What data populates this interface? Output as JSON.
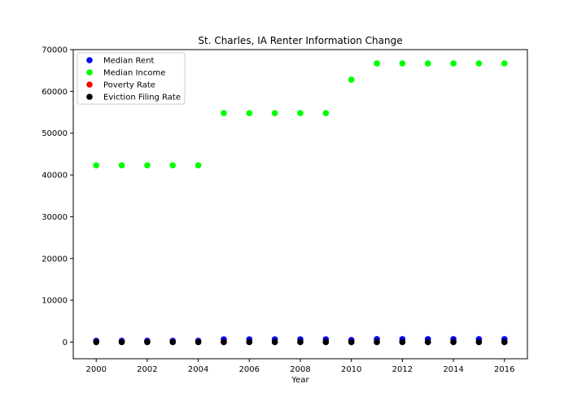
{
  "chart_data": {
    "type": "scatter",
    "title": "St. Charles, IA Renter Information Change",
    "xlabel": "Year",
    "ylabel": "",
    "xlim": [
      1999.1,
      2016.9
    ],
    "ylim": [
      -4000,
      70000
    ],
    "xticks": [
      2000,
      2002,
      2004,
      2006,
      2008,
      2010,
      2012,
      2014,
      2016
    ],
    "yticks": [
      0,
      10000,
      20000,
      30000,
      40000,
      50000,
      60000,
      70000
    ],
    "grid": false,
    "legend_position": "top-left",
    "x": [
      2000,
      2001,
      2002,
      2003,
      2004,
      2005,
      2006,
      2007,
      2008,
      2009,
      2010,
      2011,
      2012,
      2013,
      2014,
      2015,
      2016
    ],
    "series": [
      {
        "name": "Median Rent",
        "color": "#0000ff",
        "values": [
          300,
          300,
          300,
          300,
          300,
          650,
          650,
          650,
          650,
          650,
          500,
          700,
          700,
          700,
          700,
          700,
          700
        ]
      },
      {
        "name": "Median Income",
        "color": "#00ff00",
        "values": [
          42300,
          42300,
          42300,
          42300,
          42300,
          54800,
          54800,
          54800,
          54800,
          54800,
          62800,
          66700,
          66700,
          66700,
          66700,
          66700,
          66700
        ]
      },
      {
        "name": "Poverty Rate",
        "color": "#ff0000",
        "values": [
          5,
          5,
          5,
          5,
          5,
          6,
          6,
          6,
          6,
          6,
          8,
          8,
          8,
          8,
          8,
          8,
          8
        ]
      },
      {
        "name": "Eviction Filing Rate",
        "color": "#000000",
        "values": [
          0,
          0,
          0,
          0,
          0,
          0,
          0,
          0,
          0,
          0,
          0,
          0,
          0,
          0,
          0,
          0,
          0
        ]
      }
    ]
  }
}
